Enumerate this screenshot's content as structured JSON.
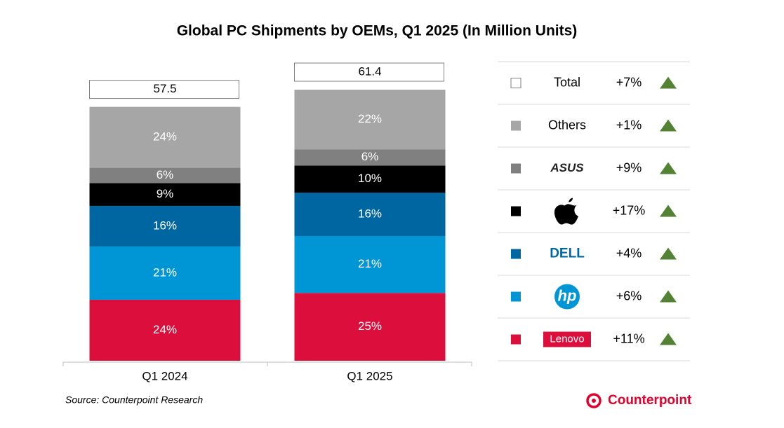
{
  "chart_data": {
    "type": "stacked_bar_100",
    "title": "Global PC Shipments by OEMs, Q1 2025 (In Million Units)",
    "categories": [
      "Q1 2024",
      "Q1 2025"
    ],
    "total": {
      "name": "Total",
      "values": [
        57.5,
        61.4
      ],
      "growth": 7,
      "growth_label": "+7%"
    },
    "series": [
      {
        "name": "Lenovo",
        "color": "#dc0f3c",
        "values": [
          24,
          25
        ],
        "value_labels": [
          "24%",
          "25%"
        ],
        "growth": 11,
        "growth_label": "+11%"
      },
      {
        "name": "hp",
        "color": "#0096d6",
        "values": [
          21,
          21
        ],
        "value_labels": [
          "21%",
          "21%"
        ],
        "growth": 6,
        "growth_label": "+6%"
      },
      {
        "name": "DELL",
        "color": "#0066a1",
        "values": [
          16,
          16
        ],
        "value_labels": [
          "16%",
          "16%"
        ],
        "growth": 4,
        "growth_label": "+4%"
      },
      {
        "name": null,
        "color": "#000000",
        "values": [
          9,
          10
        ],
        "value_labels": [
          "9%",
          "10%"
        ],
        "growth": 17,
        "growth_label": "+17%"
      },
      {
        "name": "ASUS",
        "color": "#808080",
        "values": [
          6,
          6
        ],
        "value_labels": [
          "6%",
          "6%"
        ],
        "growth": 9,
        "growth_label": "+9%"
      },
      {
        "name": "Others",
        "color": "#a6a6a6",
        "values": [
          24,
          22
        ],
        "value_labels": [
          "24%",
          "22%"
        ],
        "growth": 1,
        "growth_label": "+1%"
      }
    ],
    "source": "Source: Counterpoint Research",
    "brand": "Counterpoint"
  }
}
